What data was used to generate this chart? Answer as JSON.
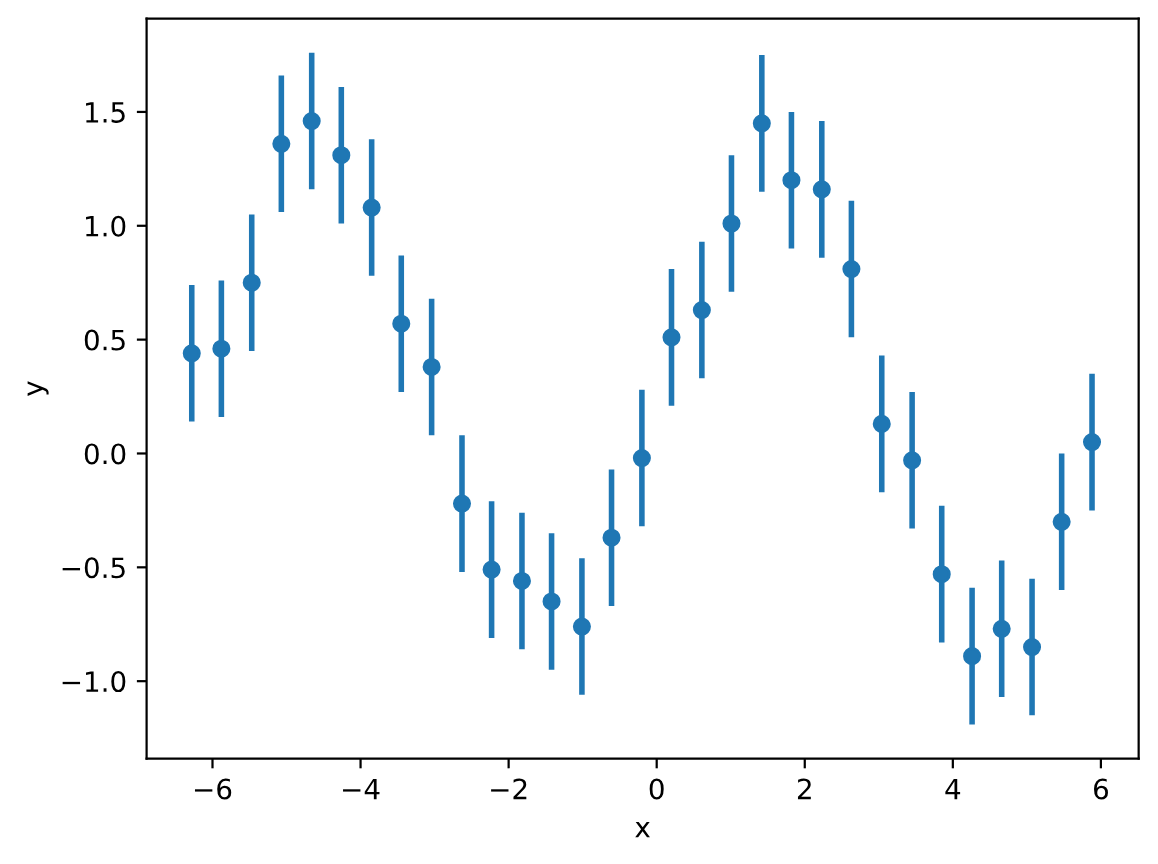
{
  "chart_data": {
    "type": "scatter",
    "xlabel": "x",
    "ylabel": "y",
    "x": [
      -6.28,
      -5.88,
      -5.47,
      -5.07,
      -4.66,
      -4.26,
      -3.85,
      -3.45,
      -3.04,
      -2.63,
      -2.23,
      -1.82,
      -1.42,
      -1.01,
      -0.61,
      -0.2,
      0.2,
      0.61,
      1.01,
      1.42,
      1.82,
      2.23,
      2.63,
      3.04,
      3.45,
      3.85,
      4.26,
      4.66,
      5.07,
      5.47,
      5.88
    ],
    "values": [
      0.44,
      0.46,
      0.75,
      1.36,
      1.46,
      1.31,
      1.08,
      0.57,
      0.38,
      -0.22,
      -0.51,
      -0.56,
      -0.65,
      -0.76,
      -0.37,
      -0.02,
      0.51,
      0.63,
      1.01,
      1.45,
      1.2,
      1.16,
      0.81,
      0.13,
      -0.03,
      -0.53,
      -0.89,
      -0.77,
      -0.85,
      -0.3,
      0.05
    ],
    "errors": [
      0.3,
      0.3,
      0.3,
      0.3,
      0.3,
      0.3,
      0.3,
      0.3,
      0.3,
      0.3,
      0.3,
      0.3,
      0.3,
      0.3,
      0.3,
      0.3,
      0.3,
      0.3,
      0.3,
      0.3,
      0.3,
      0.3,
      0.3,
      0.3,
      0.3,
      0.3,
      0.3,
      0.3,
      0.3,
      0.3,
      0.3
    ],
    "color": "#1f77b4",
    "marker": "circle",
    "xlim": [
      -6.89,
      6.51
    ],
    "ylim": [
      -1.34,
      1.91
    ],
    "xticks": [
      {
        "value": -6,
        "label": "−6"
      },
      {
        "value": -4,
        "label": "−4"
      },
      {
        "value": -2,
        "label": "−2"
      },
      {
        "value": 0,
        "label": "0"
      },
      {
        "value": 2,
        "label": "2"
      },
      {
        "value": 4,
        "label": "4"
      },
      {
        "value": 6,
        "label": "6"
      }
    ],
    "yticks": [
      {
        "value": -1.0,
        "label": "−1.0"
      },
      {
        "value": -0.5,
        "label": "−0.5"
      },
      {
        "value": 0.0,
        "label": "0.0"
      },
      {
        "value": 0.5,
        "label": "0.5"
      },
      {
        "value": 1.0,
        "label": "1.0"
      },
      {
        "value": 1.5,
        "label": "1.5"
      }
    ]
  }
}
